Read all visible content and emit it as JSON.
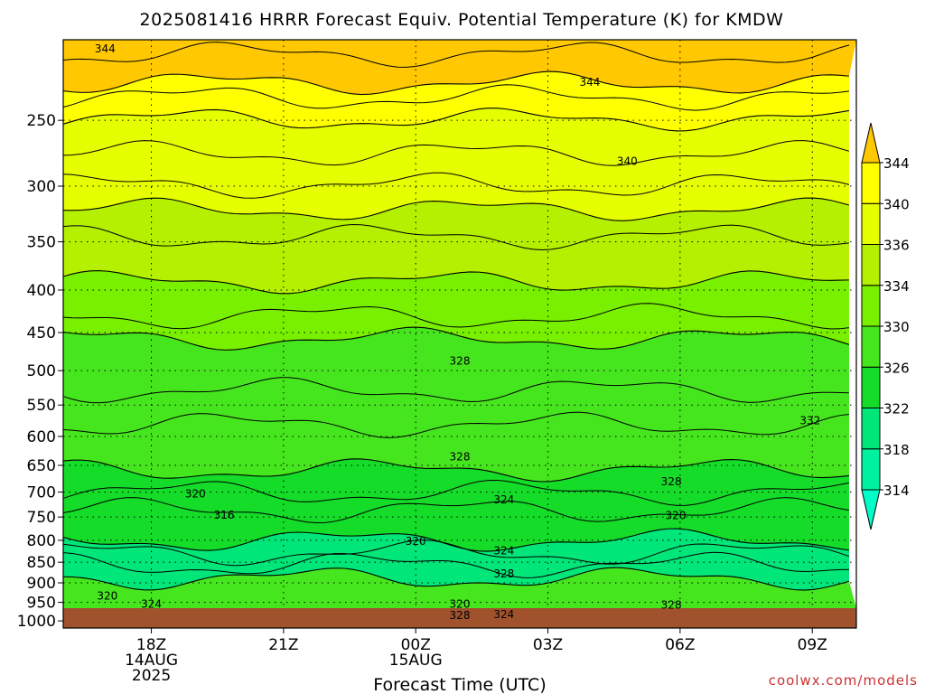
{
  "chart_data": {
    "type": "contour",
    "title": "2025081416 HRRR Forecast Equiv. Potential Temperature (K) for KMDW",
    "xlabel": "Forecast Time (UTC)",
    "credit": "coolwx.com/models",
    "ylim": [
      1020,
      200
    ],
    "y_scale": "log",
    "y_ticks": [
      250,
      300,
      350,
      400,
      450,
      500,
      550,
      600,
      650,
      700,
      750,
      800,
      850,
      900,
      950,
      1000
    ],
    "x_ticks": [
      {
        "label": "18Z",
        "sub": [
          "14AUG",
          "2025"
        ],
        "hour": 2
      },
      {
        "label": "21Z",
        "sub": [],
        "hour": 5
      },
      {
        "label": "00Z",
        "sub": [
          "15AUG"
        ],
        "hour": 8
      },
      {
        "label": "03Z",
        "sub": [],
        "hour": 11
      },
      {
        "label": "06Z",
        "sub": [],
        "hour": 14
      },
      {
        "label": "09Z",
        "sub": [],
        "hour": 17
      }
    ],
    "colorbar": {
      "levels": [
        314,
        318,
        322,
        326,
        330,
        334,
        336,
        340,
        344
      ],
      "labels": [
        "314",
        "318",
        "322",
        "326",
        "330",
        "334",
        "336",
        "340",
        "344"
      ],
      "colors": [
        "#00ffc8",
        "#00f2a0",
        "#00e678",
        "#14dc28",
        "#46e61e",
        "#78f000",
        "#b4f000",
        "#e6ff00",
        "#ffff00",
        "#ffc800"
      ]
    },
    "contour_labels": [
      {
        "text": "344",
        "hour": 0.95,
        "p": 205
      },
      {
        "text": "344",
        "hour": 11.95,
        "p": 225
      },
      {
        "text": "340",
        "hour": 12.8,
        "p": 280
      },
      {
        "text": "328",
        "hour": 9.0,
        "p": 487
      },
      {
        "text": "332",
        "hour": 16.95,
        "p": 574
      },
      {
        "text": "328",
        "hour": 9.0,
        "p": 635
      },
      {
        "text": "328",
        "hour": 13.8,
        "p": 680
      },
      {
        "text": "320",
        "hour": 3.0,
        "p": 703
      },
      {
        "text": "324",
        "hour": 10.0,
        "p": 715
      },
      {
        "text": "316",
        "hour": 3.65,
        "p": 746
      },
      {
        "text": "320",
        "hour": 13.9,
        "p": 747
      },
      {
        "text": "320",
        "hour": 8.0,
        "p": 802
      },
      {
        "text": "324",
        "hour": 10.0,
        "p": 823
      },
      {
        "text": "328",
        "hour": 10.0,
        "p": 878
      },
      {
        "text": "320",
        "hour": 1.0,
        "p": 933
      },
      {
        "text": "324",
        "hour": 2.0,
        "p": 955
      },
      {
        "text": "320",
        "hour": 9.0,
        "p": 955
      },
      {
        "text": "328",
        "hour": 13.8,
        "p": 957
      },
      {
        "text": "328",
        "hour": 9.0,
        "p": 985
      },
      {
        "text": "324",
        "hour": 10.0,
        "p": 983
      }
    ]
  }
}
